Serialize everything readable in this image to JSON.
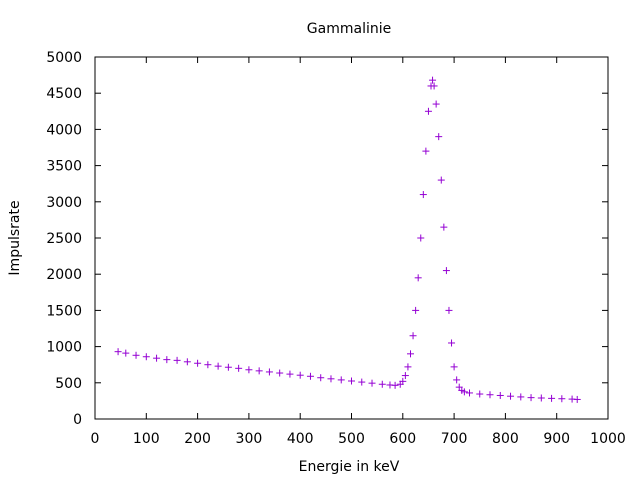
{
  "chart_data": {
    "type": "scatter",
    "title": "Gammalinie",
    "xlabel": "Energie in keV",
    "ylabel": "Impulsrate",
    "xlim": [
      0,
      1000
    ],
    "ylim": [
      0,
      5000
    ],
    "x_ticks": [
      "0",
      "100",
      "200",
      "300",
      "400",
      "500",
      "600",
      "700",
      "800",
      "900",
      "1000"
    ],
    "y_ticks": [
      "0",
      "500",
      "1000",
      "1500",
      "2000",
      "2500",
      "3000",
      "3500",
      "4000",
      "4500",
      "5000"
    ],
    "grid": false,
    "legend": "none",
    "marker": "plus",
    "color": "#9400d3",
    "series": [
      {
        "points": [
          [
            45,
            930
          ],
          [
            60,
            910
          ],
          [
            80,
            880
          ],
          [
            100,
            860
          ],
          [
            120,
            840
          ],
          [
            140,
            820
          ],
          [
            160,
            810
          ],
          [
            180,
            790
          ],
          [
            200,
            770
          ],
          [
            220,
            750
          ],
          [
            240,
            730
          ],
          [
            260,
            715
          ],
          [
            280,
            700
          ],
          [
            300,
            680
          ],
          [
            320,
            665
          ],
          [
            340,
            650
          ],
          [
            360,
            635
          ],
          [
            380,
            620
          ],
          [
            400,
            605
          ],
          [
            420,
            590
          ],
          [
            440,
            570
          ],
          [
            460,
            555
          ],
          [
            480,
            540
          ],
          [
            500,
            525
          ],
          [
            520,
            510
          ],
          [
            540,
            495
          ],
          [
            560,
            480
          ],
          [
            575,
            470
          ],
          [
            585,
            465
          ],
          [
            595,
            480
          ],
          [
            600,
            520
          ],
          [
            605,
            600
          ],
          [
            610,
            720
          ],
          [
            615,
            900
          ],
          [
            620,
            1150
          ],
          [
            625,
            1500
          ],
          [
            630,
            1950
          ],
          [
            635,
            2500
          ],
          [
            640,
            3100
          ],
          [
            645,
            3700
          ],
          [
            650,
            4250
          ],
          [
            655,
            4600
          ],
          [
            658,
            4680
          ],
          [
            661,
            4600
          ],
          [
            665,
            4350
          ],
          [
            670,
            3900
          ],
          [
            675,
            3300
          ],
          [
            680,
            2650
          ],
          [
            685,
            2050
          ],
          [
            690,
            1500
          ],
          [
            695,
            1050
          ],
          [
            700,
            720
          ],
          [
            705,
            540
          ],
          [
            710,
            440
          ],
          [
            715,
            395
          ],
          [
            720,
            375
          ],
          [
            730,
            360
          ],
          [
            750,
            345
          ],
          [
            770,
            335
          ],
          [
            790,
            325
          ],
          [
            810,
            315
          ],
          [
            830,
            305
          ],
          [
            850,
            295
          ],
          [
            870,
            290
          ],
          [
            890,
            285
          ],
          [
            910,
            280
          ],
          [
            930,
            275
          ],
          [
            940,
            270
          ]
        ]
      }
    ]
  }
}
